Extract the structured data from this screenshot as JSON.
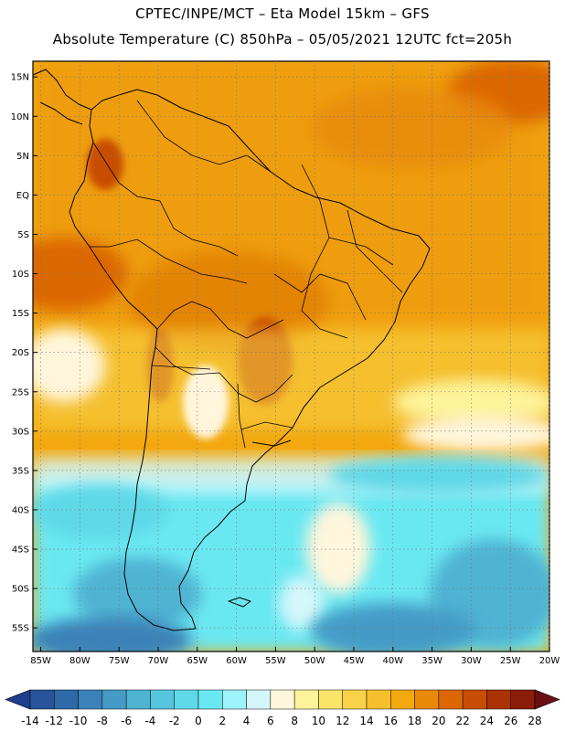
{
  "header": {
    "line1": "CPTEC/INPE/MCT –  Eta Model 15km – GFS",
    "line2": "Absolute Temperature (C) 850hPa – 05/05/2021 12UTC fct=205h"
  },
  "map": {
    "region": "South America",
    "lon_range": [
      -86,
      -20
    ],
    "lat_range": [
      -58,
      17
    ],
    "lat_labels": [
      "15N",
      "10N",
      "5N",
      "EQ",
      "5S",
      "10S",
      "15S",
      "20S",
      "25S",
      "30S",
      "35S",
      "40S",
      "45S",
      "50S",
      "55S"
    ],
    "lat_values": [
      15,
      10,
      5,
      0,
      -5,
      -10,
      -15,
      -20,
      -25,
      -30,
      -35,
      -40,
      -45,
      -50,
      -55
    ],
    "lon_labels": [
      "85W",
      "80W",
      "75W",
      "70W",
      "65W",
      "60W",
      "55W",
      "50W",
      "45W",
      "40W",
      "35W",
      "30W",
      "25W",
      "20W"
    ],
    "lon_values": [
      -85,
      -80,
      -75,
      -70,
      -65,
      -60,
      -55,
      -50,
      -45,
      -40,
      -35,
      -30,
      -25,
      -20
    ]
  },
  "colorbar": {
    "labels": [
      "-14",
      "-12",
      "-10",
      "-8",
      "-6",
      "-4",
      "-2",
      "0",
      "2",
      "4",
      "6",
      "8",
      "10",
      "12",
      "14",
      "16",
      "18",
      "20",
      "22",
      "24",
      "26",
      "28"
    ],
    "colors": [
      "#1f3f8c",
      "#27549a",
      "#2f6aa8",
      "#3a82b8",
      "#459bc6",
      "#4fb3d2",
      "#56c6de",
      "#5fd8e8",
      "#6ae8f2",
      "#9cf3fa",
      "#d4f7fb",
      "#fff6dc",
      "#fdf39a",
      "#fbe46a",
      "#f8d34a",
      "#f5c02c",
      "#f2a80f",
      "#e88a08",
      "#dc6705",
      "#c84d05",
      "#aa3204",
      "#8a1e0a",
      "#6a1014"
    ]
  }
}
